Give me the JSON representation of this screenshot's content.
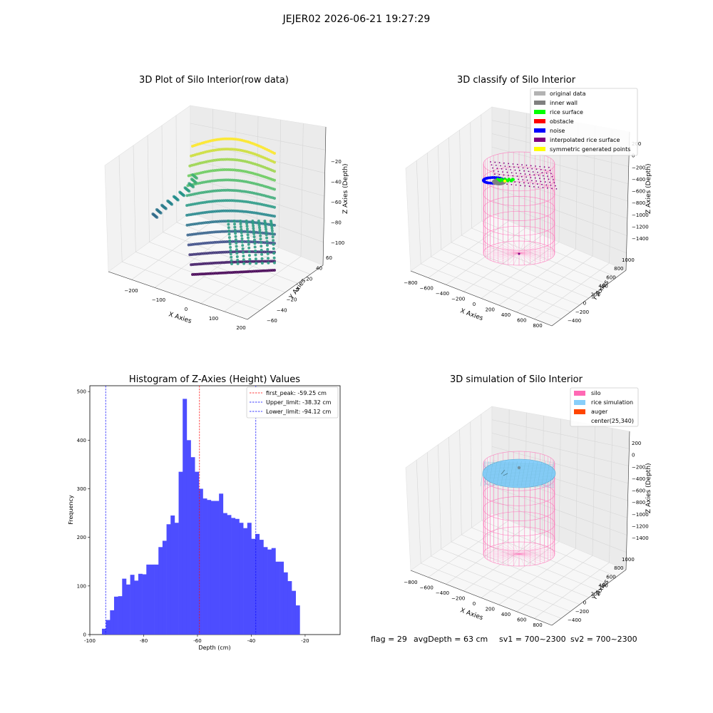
{
  "figure": {
    "suptitle": "JEJER02 2026-06-21 19:27:29",
    "footer": {
      "flag": "flag = 29",
      "avg_depth": "avgDepth = 63 cm",
      "sv1": "sv1 = 700~2300",
      "sv2": "sv2 = 700~2300"
    }
  },
  "colors": {
    "hist_bar": "#4d4dff",
    "first_peak_line": "#ff0000",
    "limit_lines": "#0000ff",
    "silo_wire": "#ff69b4",
    "rice_sim": "#87cefa",
    "auger": "#ff4500",
    "gray_original": "#b3b3b3",
    "gray_inner": "#808080",
    "rice_surface": "#00ff00",
    "obstacle": "#ff0000",
    "noise": "#0000ff",
    "interp": "#800080",
    "sym": "#ffff00"
  },
  "chart_data": [
    {
      "type": "scatter",
      "panel": "raw",
      "title": "3D Plot of Silo Interior(row data)",
      "xlabel": "X Axies",
      "ylabel": "Y Axies",
      "zlabel": "Z Axies (Depth)",
      "x_ticks": [
        "−200",
        "−100",
        "0",
        "100",
        "200"
      ],
      "y_ticks": [
        "−60",
        "−40",
        "−20",
        "0",
        "20",
        "40",
        "60"
      ],
      "z_ticks": [
        "−20",
        "−40",
        "−60",
        "−80",
        "−100"
      ],
      "xlim": [
        -250,
        200
      ],
      "ylim": [
        -70,
        70
      ],
      "zlim": [
        -100,
        -10
      ]
    },
    {
      "type": "scatter",
      "panel": "classify",
      "title": "3D classify of Silo Interior",
      "xlabel": "X Axies",
      "ylabel": "Y Axies",
      "zlabel": "Z Axies (Depth)",
      "x_ticks": [
        "−800",
        "−600",
        "−400",
        "−200",
        "0",
        "200",
        "400",
        "600",
        "800"
      ],
      "y_ticks": [
        "−400",
        "−200",
        "0",
        "200",
        "400",
        "600",
        "800",
        "1000"
      ],
      "z_ticks": [
        "200",
        "0",
        "−200",
        "−400",
        "−600",
        "−800",
        "−1000",
        "−1200",
        "−1400"
      ],
      "legend": {
        "position": "upper right",
        "entries": [
          {
            "label": "original data",
            "color": "#b3b3b3"
          },
          {
            "label": "inner wall",
            "color": "#808080"
          },
          {
            "label": "rice surface",
            "color": "#00ff00"
          },
          {
            "label": "obstacle",
            "color": "#ff0000"
          },
          {
            "label": "noise",
            "color": "#0000ff"
          },
          {
            "label": "interpolated rice surface",
            "color": "#800080"
          },
          {
            "label": "symmetric generated points",
            "color": "#ffff00"
          }
        ]
      }
    },
    {
      "type": "bar",
      "panel": "histogram",
      "title": "Histogram of Z-Axies (Height) Values",
      "xlabel": "Depth (cm)",
      "ylabel": "Frequency",
      "xlim": [
        -100,
        -7
      ],
      "ylim": [
        0,
        512
      ],
      "x_ticks": [
        -100,
        -80,
        -60,
        -40,
        -20
      ],
      "y_ticks": [
        0,
        100,
        200,
        300,
        400,
        500
      ],
      "bin_start": -95.5,
      "bin_width": 1.5,
      "values": [
        12,
        30,
        50,
        78,
        79,
        115,
        103,
        123,
        111,
        125,
        124,
        144,
        144,
        144,
        180,
        193,
        227,
        245,
        230,
        335,
        485,
        400,
        365,
        335,
        300,
        280,
        277,
        275,
        275,
        290,
        250,
        246,
        240,
        238,
        230,
        219,
        230,
        197,
        207,
        195,
        180,
        175,
        178,
        150,
        150,
        128,
        110,
        90,
        60
      ],
      "vlines": [
        {
          "label": "first_peak: -59.25 cm",
          "x": -59.25,
          "color": "#ff0000"
        },
        {
          "label": "Upper_limit: -38.32 cm",
          "x": -38.32,
          "color": "#0000ff"
        },
        {
          "label": "Lower_limit: -94.12 cm",
          "x": -94.12,
          "color": "#0000ff"
        }
      ],
      "legend_position": "upper right"
    },
    {
      "type": "scatter",
      "panel": "simulation",
      "title": "3D simulation of Silo Interior",
      "xlabel": "X Axies",
      "ylabel": "Y Axies",
      "zlabel": "Z Axies (Depth)",
      "x_ticks": [
        "−800",
        "−600",
        "−400",
        "−200",
        "0",
        "200",
        "400",
        "600",
        "800"
      ],
      "y_ticks": [
        "−400",
        "−200",
        "0",
        "200",
        "400",
        "600",
        "800",
        "1000"
      ],
      "z_ticks": [
        "200",
        "0",
        "−200",
        "−400",
        "−600",
        "−800",
        "−1000",
        "−1200",
        "−1400"
      ],
      "legend": {
        "position": "upper right",
        "entries": [
          {
            "label": "silo",
            "color": "#ff69b4"
          },
          {
            "label": "rice simulation",
            "color": "#87cefa"
          },
          {
            "label": "auger",
            "color": "#ff4500"
          },
          {
            "label": "center(25,340)",
            "color": ""
          }
        ]
      }
    }
  ]
}
